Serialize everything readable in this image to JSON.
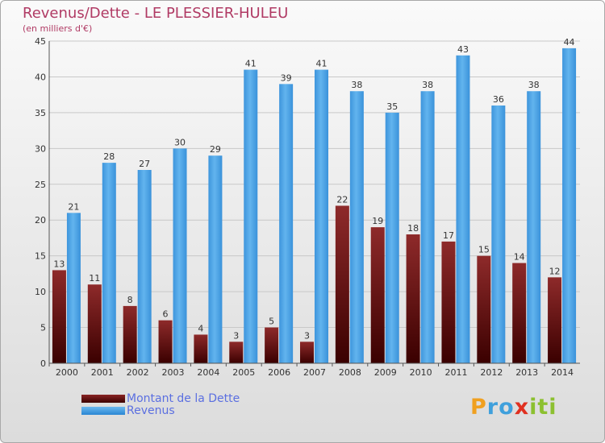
{
  "chart_data": {
    "type": "bar",
    "title": "Revenus/Dette - LE PLESSIER-HULEU",
    "subtitle": "(en milliers d'€)",
    "xlabel": "",
    "ylabel": "",
    "ylim": [
      0,
      45
    ],
    "yticks": [
      0,
      5,
      10,
      15,
      20,
      25,
      30,
      35,
      40,
      45
    ],
    "grid": true,
    "legend_position": "bottom-left",
    "categories": [
      "2000",
      "2001",
      "2002",
      "2003",
      "2004",
      "2005",
      "2006",
      "2007",
      "2008",
      "2009",
      "2010",
      "2011",
      "2012",
      "2013",
      "2014"
    ],
    "series": [
      {
        "name": "Montant de la Dette",
        "color": "#6b1010",
        "values": [
          13,
          11,
          8,
          6,
          4,
          3,
          5,
          3,
          22,
          19,
          18,
          17,
          15,
          14,
          12
        ]
      },
      {
        "name": "Revenus",
        "color": "#4aa3e6",
        "values": [
          21,
          28,
          27,
          30,
          29,
          41,
          39,
          41,
          38,
          35,
          38,
          43,
          36,
          38,
          44
        ]
      }
    ]
  },
  "logo": {
    "text": "Proxiti",
    "letters": [
      "P",
      "r",
      "o",
      "x",
      "i",
      "t",
      "i"
    ],
    "colors": [
      "#f0a020",
      "#3fa0dc",
      "#3fa0dc",
      "#e03020",
      "#8cc030",
      "#8cc030",
      "#8cc030"
    ]
  }
}
